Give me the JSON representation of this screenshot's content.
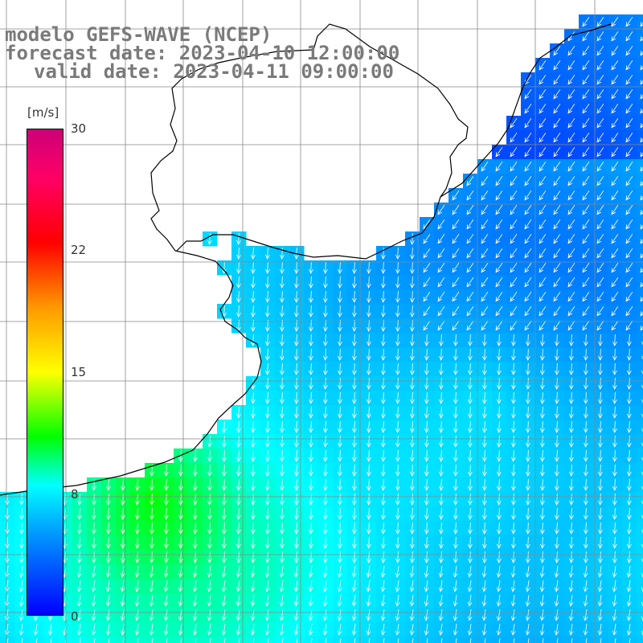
{
  "title": {
    "line1": "modelo GEFS-WAVE (NCEP)",
    "line2": "forecast date: 2023-04-10 12:00:00",
    "line3": "valid date: 2023-04-11 09:00:00"
  },
  "colorbar": {
    "unit": "[m/s]",
    "ticks": [
      {
        "label": "30",
        "value": 30
      },
      {
        "label": "22",
        "value": 22
      },
      {
        "label": "15",
        "value": 15
      },
      {
        "label": "8",
        "value": 8
      },
      {
        "label": "0",
        "value": 0
      }
    ],
    "stops": [
      {
        "value": 0,
        "color": "#0000ff"
      },
      {
        "value": 5,
        "color": "#0099ff"
      },
      {
        "value": 8,
        "color": "#00ffff"
      },
      {
        "value": 11,
        "color": "#00ff00"
      },
      {
        "value": 15,
        "color": "#ffff00"
      },
      {
        "value": 19,
        "color": "#ff9900"
      },
      {
        "value": 23,
        "color": "#ff0000"
      },
      {
        "value": 27,
        "color": "#ff0066"
      },
      {
        "value": 30,
        "color": "#cc0077"
      }
    ]
  },
  "colors": {
    "land": "#ffffff",
    "grid": "#888888",
    "coast": "#000000",
    "arrow": "#ffffff"
  }
}
